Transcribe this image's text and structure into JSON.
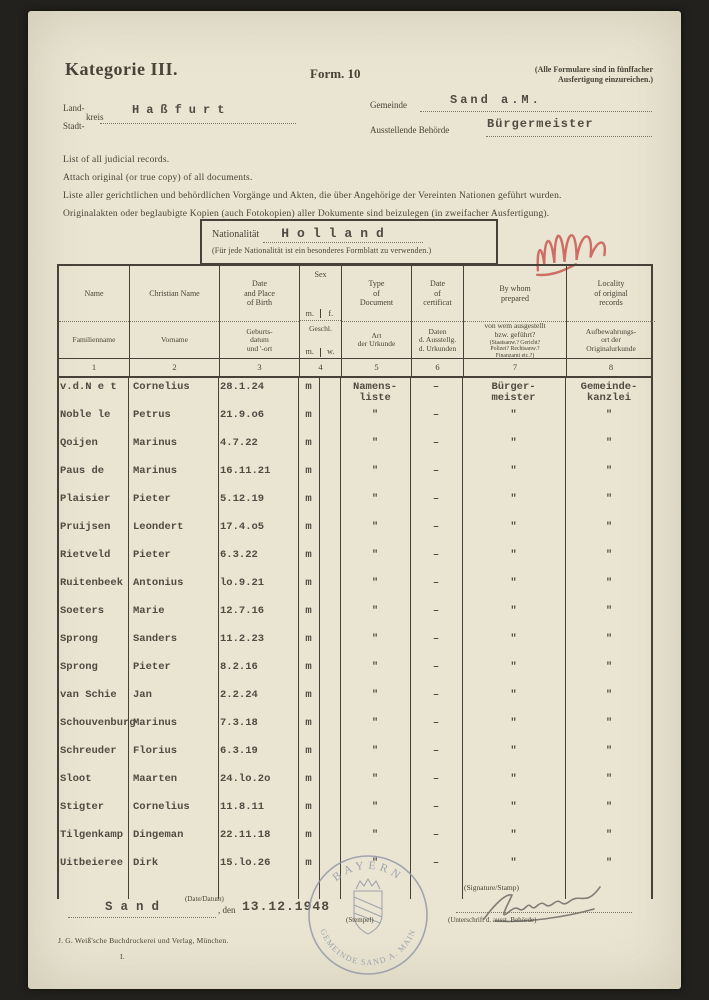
{
  "header": {
    "category": "Kategorie III.",
    "form_no": "Form. 10",
    "copies_note": "(Alle Formulare sind in fünffacher\nAusfertigung einzureichen.)"
  },
  "fields": {
    "land": "Land-",
    "kreis": "kreis",
    "stadt": "Stadt-",
    "kreis_value": "Haßfurt",
    "gemeinde_label": "Gemeinde",
    "gemeinde_value": "Sand a.M.",
    "behoerde_label": "Ausstellende Behörde",
    "behoerde_value": "Bürgermeister"
  },
  "instructions": {
    "line1": "List of all judicial records.",
    "line2": "Attach  original (or true copy) of all documents.",
    "line3": "Liste aller gerichtlichen und behördlichen Vorgänge und Akten, die über Angehörige der Vereinten Nationen geführt wurden.",
    "line4": "Originalakten oder beglaubigte Kopien (auch Fotokopien) aller Dokumente sind beizulegen (in zweifacher Ausfertigung)."
  },
  "nationality": {
    "label": "Nationalität",
    "value": "Holland",
    "note": "(Für jede Nationalität ist ein besonderes Formblatt zu verwenden.)"
  },
  "table": {
    "cols": [
      {
        "en": "Name",
        "de": "Familienname",
        "no": "1"
      },
      {
        "en": "Christian Name",
        "de": "Vorname",
        "no": "2"
      },
      {
        "en": "Date\nand Place\nof Birth",
        "de": "Geburts-\ndatum\nund '-ort",
        "no": "3"
      },
      {
        "en": "Sex",
        "en_m": "m.",
        "en_f": "f.",
        "de": "Geschl.",
        "de_m": "m.",
        "de_w": "w.",
        "no": "4"
      },
      {
        "en": "Type\nof\nDocument",
        "de": "Art\nder Urkunde",
        "no": "5"
      },
      {
        "en": "Date\nof\ncertificat",
        "de": "Daten\nd. Ausstellg.\nd. Urkunden",
        "no": "6"
      },
      {
        "en": "By whom\nprepared",
        "de": "von wem ausgestellt\nbzw. geführt?",
        "de_sub": "(Staatsanw.? Gericht?\nPolizei? Rechtsanw.?\nFinanzamt etc.?)",
        "no": "7"
      },
      {
        "en": "Locality\nof original\nrecords",
        "de": "Aufbewahrungs-\nort der\nOriginalurkunde",
        "no": "8"
      }
    ],
    "rows": [
      {
        "name": "v.d.N e t",
        "given": "Cornelius",
        "dob": "28.1.24",
        "sex": "m",
        "doc": "Namens-\nliste",
        "cert": "–",
        "prep": "Bürger-\nmeister",
        "loc": "Gemeinde-\nkanzlei"
      },
      {
        "name": "Noble le",
        "given": "Petrus",
        "dob": "21.9.o6",
        "sex": "m",
        "doc": "\"",
        "cert": "–",
        "prep": "\"",
        "loc": "\""
      },
      {
        "name": "Qoijen",
        "given": "Marinus",
        "dob": "4.7.22",
        "sex": "m",
        "doc": "\"",
        "cert": "–",
        "prep": "\"",
        "loc": "\""
      },
      {
        "name": "Paus de",
        "given": "Marinus",
        "dob": "16.11.21",
        "sex": "m",
        "doc": "\"",
        "cert": "–",
        "prep": "\"",
        "loc": "\""
      },
      {
        "name": "Plaisier",
        "given": "Pieter",
        "dob": "5.12.19",
        "sex": "m",
        "doc": "\"",
        "cert": "–",
        "prep": "\"",
        "loc": "\""
      },
      {
        "name": "Pruijsen",
        "given": "Leondert",
        "dob": "17.4.o5",
        "sex": "m",
        "doc": "\"",
        "cert": "–",
        "prep": "\"",
        "loc": "\""
      },
      {
        "name": "Rietveld",
        "given": "Pieter",
        "dob": "6.3.22",
        "sex": "m",
        "doc": "\"",
        "cert": "–",
        "prep": "\"",
        "loc": "\""
      },
      {
        "name": "Ruitenbeek",
        "given": "Antonius",
        "dob": "lo.9.21",
        "sex": "m",
        "doc": "\"",
        "cert": "–",
        "prep": "\"",
        "loc": "\""
      },
      {
        "name": "Soeters",
        "given": "Marie",
        "dob": "12.7.16",
        "sex": "m",
        "doc": "\"",
        "cert": "–",
        "prep": "\"",
        "loc": "\""
      },
      {
        "name": "Sprong",
        "given": "Sanders",
        "dob": "11.2.23",
        "sex": "m",
        "doc": "\"",
        "cert": "–",
        "prep": "\"",
        "loc": "\""
      },
      {
        "name": "Sprong",
        "given": "Pieter",
        "dob": "8.2.16",
        "sex": "m",
        "doc": "\"",
        "cert": "–",
        "prep": "\"",
        "loc": "\""
      },
      {
        "name": "van Schie",
        "given": "Jan",
        "dob": "2.2.24",
        "sex": "m",
        "doc": "\"",
        "cert": "–",
        "prep": "\"",
        "loc": "\""
      },
      {
        "name": "Schouvenburg",
        "given": "Marinus",
        "dob": "7.3.18",
        "sex": "m",
        "doc": "\"",
        "cert": "–",
        "prep": "\"",
        "loc": "\""
      },
      {
        "name": "Schreuder",
        "given": "Florius",
        "dob": "6.3.19",
        "sex": "m",
        "doc": "\"",
        "cert": "–",
        "prep": "\"",
        "loc": "\""
      },
      {
        "name": "Sloot",
        "given": "Maarten",
        "dob": "24.lo.2o",
        "sex": "m",
        "doc": "\"",
        "cert": "–",
        "prep": "\"",
        "loc": "\""
      },
      {
        "name": "Stigter",
        "given": "Cornelius",
        "dob": "11.8.11",
        "sex": "m",
        "doc": "\"",
        "cert": "–",
        "prep": "\"",
        "loc": "\""
      },
      {
        "name": "Tilgenkamp",
        "given": "Dingeman",
        "dob": "22.11.18",
        "sex": "m",
        "doc": "\"",
        "cert": "–",
        "prep": "\"",
        "loc": "\""
      },
      {
        "name": "Uitbeieree",
        "given": "Dirk",
        "dob": "15.lo.26",
        "sex": "m",
        "doc": "\"",
        "cert": "–",
        "prep": "\"",
        "loc": "\""
      }
    ]
  },
  "footer": {
    "date_label": "(Date/Datum)",
    "place_value": "Sand",
    "den_label": ", den",
    "date_value": "13.12.1948",
    "stempel_label": "(Stempel)",
    "signature_label": "(Signature/Stamp)",
    "signature_sub": "(Unterschrift d. ausst. Behörde)",
    "printer_line": "J. G. Weiß'sche Buchdruckerei und Verlag, München.",
    "sheet_mark": "I."
  },
  "stamp": {
    "top_text": "BAYERN",
    "bottom_text": "GEMEINDE SAND A. MAIN"
  },
  "colors": {
    "paper": "#e9e5d2",
    "ink": "#474338",
    "typewriter": "#504b43",
    "stamp": "#8d93a6",
    "red_mark": "#c9504a"
  }
}
